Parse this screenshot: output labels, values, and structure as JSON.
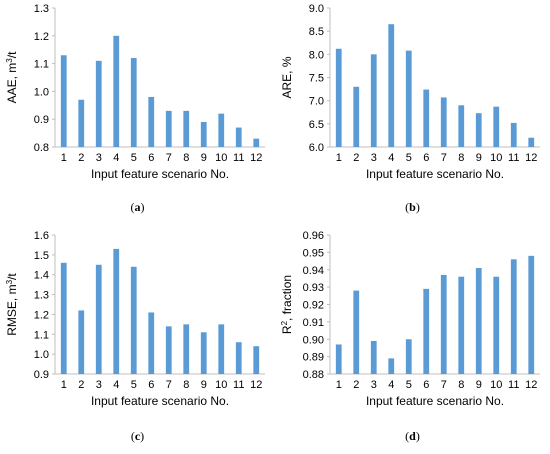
{
  "chart_data": [
    {
      "type": "bar",
      "panel_label": "a",
      "categories": [
        "1",
        "2",
        "3",
        "4",
        "5",
        "6",
        "7",
        "8",
        "9",
        "10",
        "11",
        "12"
      ],
      "values": [
        1.13,
        0.97,
        1.11,
        1.2,
        1.12,
        0.98,
        0.93,
        0.93,
        0.89,
        0.92,
        0.87,
        0.83
      ],
      "xlabel": "Input feature scenario No.",
      "ylabel_main": "AAE, m",
      "ylabel_sup": "3",
      "ylabel_tail": "/t",
      "ylim": [
        0.8,
        1.3
      ],
      "yticks": [
        0.8,
        0.9,
        1.0,
        1.1,
        1.2,
        1.3
      ],
      "tick_decimals": 1,
      "color": "#5b9bd5",
      "grid": false,
      "legend": "none"
    },
    {
      "type": "bar",
      "panel_label": "b",
      "categories": [
        "1",
        "2",
        "3",
        "4",
        "5",
        "6",
        "7",
        "8",
        "9",
        "10",
        "11",
        "12"
      ],
      "values": [
        8.12,
        7.3,
        8.0,
        8.65,
        8.08,
        7.24,
        7.07,
        6.9,
        6.73,
        6.87,
        6.52,
        6.2
      ],
      "xlabel": "Input feature scenario No.",
      "ylabel_main": "ARE, %",
      "ylabel_sup": "",
      "ylabel_tail": "",
      "ylim": [
        6.0,
        9.0
      ],
      "yticks": [
        6.0,
        6.5,
        7.0,
        7.5,
        8.0,
        8.5,
        9.0
      ],
      "tick_decimals": 1,
      "color": "#5b9bd5",
      "grid": false,
      "legend": "none"
    },
    {
      "type": "bar",
      "panel_label": "c",
      "categories": [
        "1",
        "2",
        "3",
        "4",
        "5",
        "6",
        "7",
        "8",
        "9",
        "10",
        "11",
        "12"
      ],
      "values": [
        1.46,
        1.22,
        1.45,
        1.53,
        1.44,
        1.21,
        1.14,
        1.15,
        1.11,
        1.15,
        1.06,
        1.04
      ],
      "xlabel": "Input feature scenario No.",
      "ylabel_main": "RMSE, m",
      "ylabel_sup": "3",
      "ylabel_tail": "/t",
      "ylim": [
        0.9,
        1.6
      ],
      "yticks": [
        0.9,
        1.0,
        1.1,
        1.2,
        1.3,
        1.4,
        1.5,
        1.6
      ],
      "tick_decimals": 1,
      "color": "#5b9bd5",
      "grid": false,
      "legend": "none"
    },
    {
      "type": "bar",
      "panel_label": "d",
      "categories": [
        "1",
        "2",
        "3",
        "4",
        "5",
        "6",
        "7",
        "8",
        "9",
        "10",
        "11",
        "12"
      ],
      "values": [
        0.897,
        0.928,
        0.899,
        0.889,
        0.9,
        0.929,
        0.937,
        0.936,
        0.941,
        0.936,
        0.946,
        0.948
      ],
      "xlabel": "Input feature scenario No.",
      "ylabel_main": "R",
      "ylabel_sup": "2",
      "ylabel_tail": ", fraction",
      "ylim": [
        0.88,
        0.96
      ],
      "yticks": [
        0.88,
        0.89,
        0.9,
        0.91,
        0.92,
        0.93,
        0.94,
        0.95,
        0.96
      ],
      "tick_decimals": 2,
      "color": "#5b9bd5",
      "grid": false,
      "legend": "none"
    }
  ],
  "captions": [
    "(a)",
    "(b)",
    "(c)",
    "(d)"
  ]
}
